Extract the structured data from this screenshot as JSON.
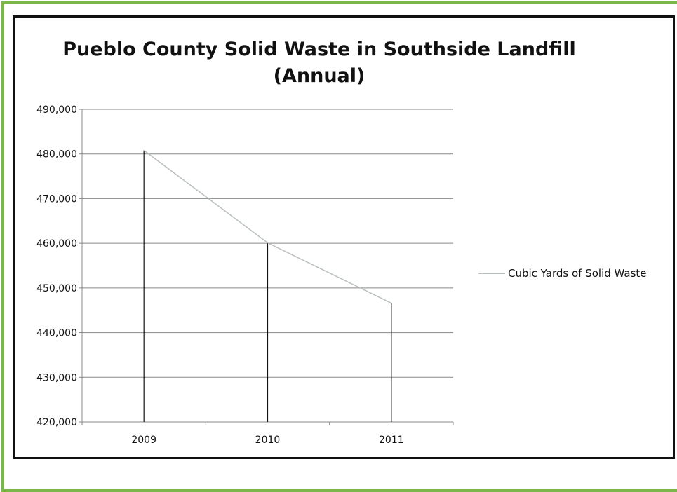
{
  "chart_data": {
    "type": "line",
    "title": [
      "Pueblo County Solid Waste in Southside Landfill",
      "(Annual)"
    ],
    "xlabel": "",
    "ylabel": "",
    "categories": [
      "2009",
      "2010",
      "2011"
    ],
    "series": [
      {
        "name": "Cubic Yards of Solid Waste",
        "values": [
          480800,
          460100,
          446600
        ],
        "color": "#b9bebf"
      }
    ],
    "drop_lines": true,
    "drop_line_color": "#111111",
    "gridline_color": "#8a8a8a",
    "ylim": [
      420000,
      490000
    ],
    "yticks": [
      420000,
      430000,
      440000,
      450000,
      460000,
      470000,
      480000,
      490000
    ],
    "ytick_labels": [
      "420,000",
      "430,000",
      "440,000",
      "450,000",
      "460,000",
      "470,000",
      "480,000",
      "490,000"
    ],
    "grid": "horizontal",
    "legend_position": "right"
  }
}
